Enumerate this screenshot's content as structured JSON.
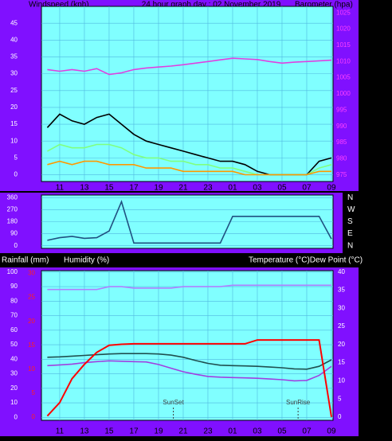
{
  "chart_data": [
    {
      "type": "line",
      "title": "24 hour graph day : 02 November 2019",
      "y_label": "Windspeed (kph)",
      "y2_label": "Barometer (hpa)",
      "x": [
        10,
        11,
        12,
        13,
        14,
        15,
        16,
        17,
        18,
        19,
        20,
        21,
        22,
        23,
        24,
        25,
        26,
        27,
        28,
        29,
        30,
        31,
        32,
        33
      ],
      "xlim": [
        9.52,
        33.13
      ],
      "xticks": [
        11,
        13,
        15,
        17,
        19,
        21,
        23,
        {
          "value": 25,
          "label": "01"
        },
        {
          "value": 27,
          "label": "03"
        },
        {
          "value": 29,
          "label": "05"
        },
        {
          "value": 31,
          "label": "07"
        },
        {
          "value": 33,
          "label": "09"
        }
      ],
      "ylim": [
        -2,
        50
      ],
      "yticks": [
        0,
        5,
        10,
        15,
        20,
        25,
        30,
        35,
        40,
        45
      ],
      "y2lim": [
        973,
        1027
      ],
      "y2ticks": [
        975,
        980,
        985,
        990,
        995,
        1000,
        1005,
        1010,
        1015,
        1020,
        1025
      ],
      "grid": true,
      "series": [
        {
          "color": "#000000",
          "values": [
            14,
            18,
            16,
            15,
            17,
            18,
            15,
            12,
            10,
            9,
            8,
            7,
            6,
            5,
            4,
            4,
            3,
            1,
            0,
            0,
            0,
            0,
            4,
            5
          ]
        },
        {
          "color": "#80ff80",
          "values": [
            7,
            9,
            8,
            8,
            9,
            9,
            8,
            6,
            5,
            5,
            4,
            4,
            3,
            3,
            2,
            2,
            1,
            0,
            0,
            0,
            0,
            0,
            2,
            3
          ]
        },
        {
          "color": "#ff9900",
          "values": [
            3,
            4,
            3,
            4,
            4,
            3,
            3,
            3,
            2,
            2,
            2,
            1,
            1,
            1,
            1,
            1,
            0,
            0,
            0,
            0,
            0,
            0,
            1,
            1
          ]
        },
        {
          "color": "#e040e0",
          "axis": "y2",
          "values": [
            1007.5,
            1007,
            1007.5,
            1007,
            1007.8,
            1006,
            1006.5,
            1007.5,
            1008,
            1008.3,
            1008.6,
            1009,
            1009.5,
            1010,
            1010.5,
            1011,
            1010.8,
            1010.6,
            1010,
            1009.5,
            1009.8,
            1010,
            1010.2,
            1010.4
          ]
        }
      ]
    },
    {
      "type": "line",
      "x": [
        10,
        11,
        12,
        13,
        14,
        15,
        16,
        17,
        18,
        19,
        20,
        21,
        22,
        23,
        24,
        25,
        26,
        27,
        28,
        29,
        30,
        31,
        32,
        33
      ],
      "xlim": [
        9.52,
        33.13
      ],
      "ylim": [
        -20,
        380
      ],
      "yticks": [
        0,
        90,
        180,
        270,
        360
      ],
      "y2ticks": [
        {
          "value": 360,
          "label": "N"
        },
        {
          "value": 270,
          "label": "W"
        },
        {
          "value": 180,
          "label": "S"
        },
        {
          "value": 90,
          "label": "E"
        },
        {
          "value": 0,
          "label": "N"
        }
      ],
      "grid": true,
      "series": [
        {
          "color": "#205080",
          "values": [
            40,
            60,
            70,
            55,
            60,
            110,
            330,
            20,
            20,
            20,
            20,
            20,
            20,
            20,
            20,
            220,
            220,
            220,
            220,
            220,
            220,
            220,
            220,
            50
          ]
        }
      ]
    },
    {
      "type": "line",
      "y_label": "Humidity (%)",
      "y3_label": "Rainfall (mm)",
      "y2_label": "Temperature (°C)Dew Point (°C)",
      "x": [
        10,
        11,
        12,
        13,
        14,
        15,
        16,
        17,
        18,
        19,
        20,
        21,
        22,
        23,
        24,
        25,
        26,
        27,
        28,
        29,
        30,
        31,
        32,
        33
      ],
      "xlim": [
        9.52,
        33.13
      ],
      "xticks": [
        11,
        13,
        15,
        17,
        19,
        21,
        23,
        {
          "value": 25,
          "label": "01"
        },
        {
          "value": 27,
          "label": "03"
        },
        {
          "value": 29,
          "label": "05"
        },
        {
          "value": 31,
          "label": "07"
        },
        {
          "value": 33,
          "label": "09"
        }
      ],
      "ylim": [
        -2,
        101
      ],
      "yticks": [
        0,
        10,
        20,
        30,
        40,
        50,
        60,
        70,
        80,
        90,
        100
      ],
      "y2lim": [
        -0.9,
        40.4
      ],
      "y2ticks": [
        0,
        5,
        10,
        15,
        20,
        25,
        30,
        35,
        40
      ],
      "y3lim": [
        -0.7,
        30.6
      ],
      "y3ticks": [
        0,
        5,
        10,
        15,
        20,
        25,
        30
      ],
      "grid": true,
      "annotations": [
        {
          "text": "SunSet",
          "x": 20.2
        },
        {
          "text": "SunRise",
          "x": 30.3
        }
      ],
      "series": [
        {
          "color": "#b080ff",
          "values": [
            88,
            88,
            88,
            88,
            88,
            90,
            90,
            89,
            89,
            89,
            89,
            90,
            90,
            90,
            90,
            91,
            91,
            91,
            91,
            91,
            91,
            91,
            91,
            91
          ]
        },
        {
          "color": "#205050",
          "axis": "y2",
          "values": [
            16.5,
            16.6,
            16.8,
            17,
            17.2,
            17.4,
            17.5,
            17.5,
            17.5,
            17.4,
            17.1,
            16.5,
            15.6,
            14.8,
            14.3,
            14.2,
            14.1,
            14,
            13.8,
            13.6,
            13.3,
            13.2,
            14,
            15.8
          ]
        },
        {
          "color": "#a040e0",
          "axis": "y2",
          "values": [
            14.2,
            14.4,
            14.6,
            15,
            15.3,
            15.5,
            15.4,
            15.3,
            15.2,
            14.5,
            13.5,
            12.5,
            11.8,
            11.2,
            11,
            10.9,
            10.8,
            10.7,
            10.5,
            10.3,
            10,
            10.1,
            11.5,
            14
          ]
        },
        {
          "color": "#ff0000",
          "axis": "y3",
          "values": [
            0.2,
            3,
            8,
            11,
            13.5,
            15,
            15.2,
            15.3,
            15.3,
            15.3,
            15.3,
            15.3,
            15.3,
            15.3,
            15.3,
            15.3,
            15.3,
            16.1,
            16.1,
            16.1,
            16.1,
            16.1,
            16.1,
            0
          ]
        }
      ]
    }
  ]
}
